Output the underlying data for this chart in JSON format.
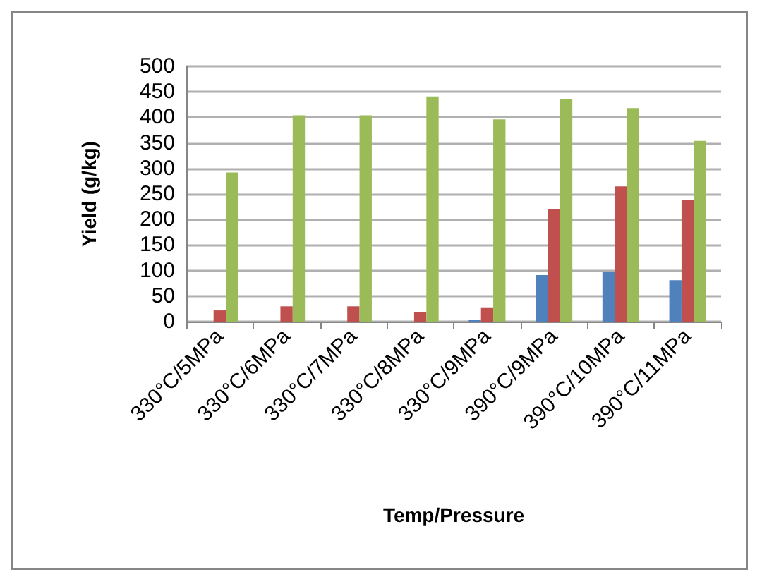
{
  "chart_data": {
    "type": "bar",
    "xlabel": "Temp/Pressure",
    "ylabel": "Yield (g/kg)",
    "categories": [
      "330°C/5MPa",
      "330°C/6MPa",
      "330°C/7MPa",
      "330°C/8MPa",
      "330°C/9MPa",
      "390°C/9MPa",
      "390°C/10MPa",
      "390°C/11MPa"
    ],
    "series": [
      {
        "color": "#4f81bd",
        "values": [
          0,
          0,
          0,
          0,
          3,
          91,
          98,
          81
        ]
      },
      {
        "color": "#c0504d",
        "values": [
          22,
          30,
          30,
          19,
          28,
          220,
          265,
          238
        ]
      },
      {
        "color": "#9bbb59",
        "values": [
          292,
          404,
          404,
          441,
          396,
          436,
          418,
          354
        ]
      }
    ],
    "ylim": [
      0,
      500
    ],
    "yticks": [
      0,
      50,
      100,
      150,
      200,
      250,
      300,
      350,
      400,
      450,
      500
    ],
    "grid": "y"
  }
}
